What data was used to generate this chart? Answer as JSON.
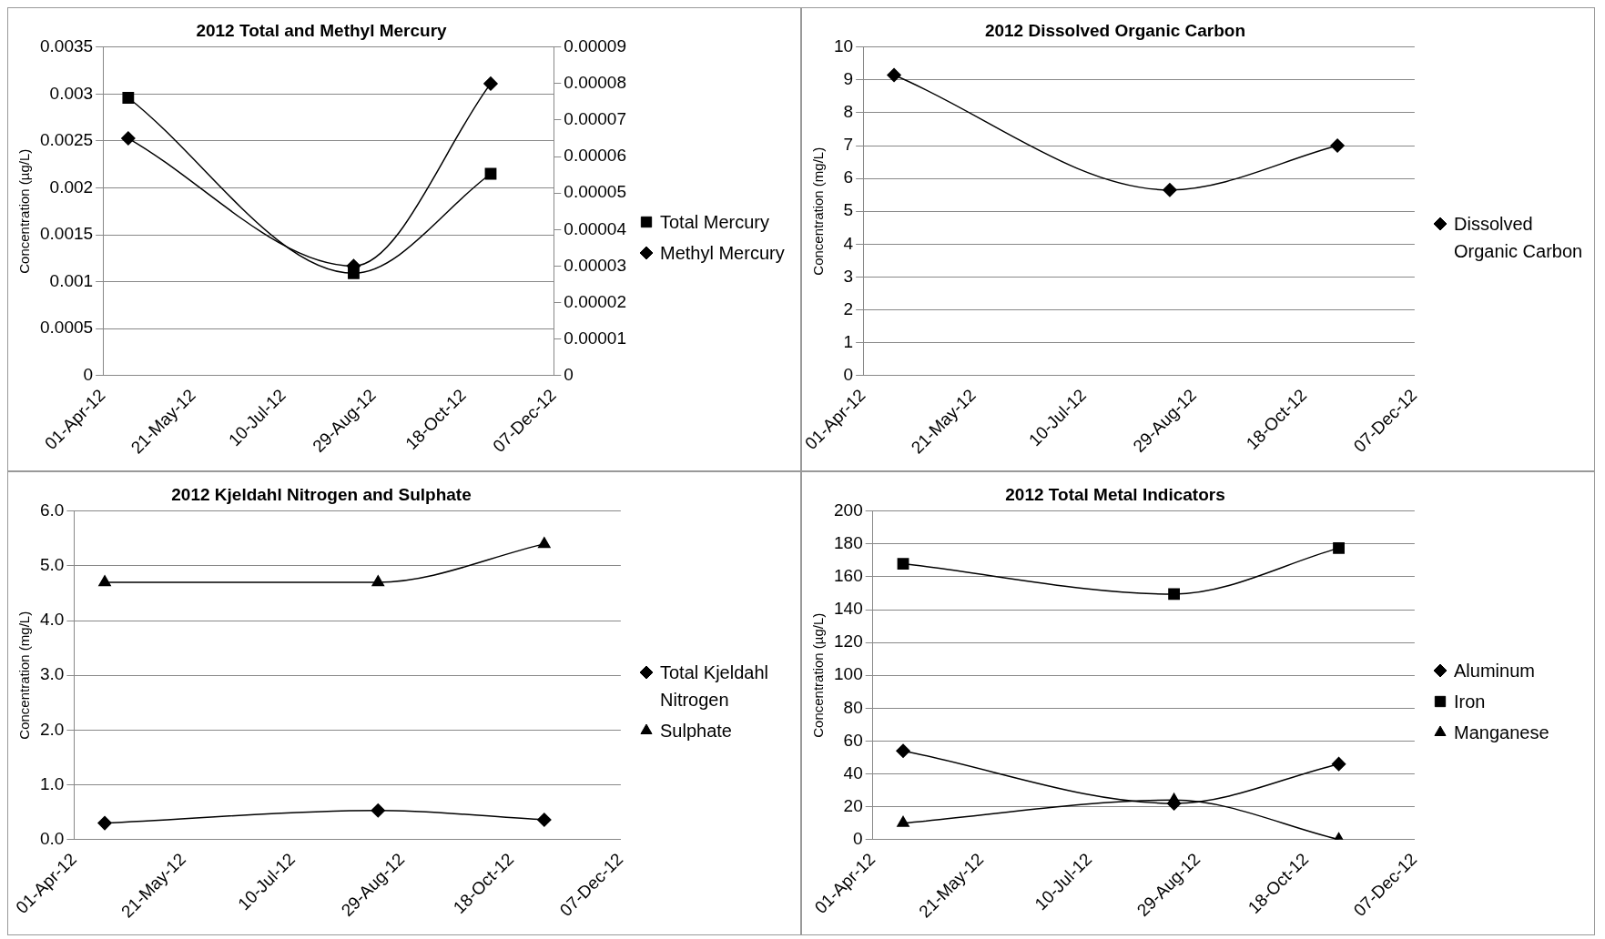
{
  "chart_data": [
    {
      "type": "line",
      "title": "2012 Total and Methyl Mercury",
      "ylabel": "Concentration (µg/L)",
      "x": [
        "2012-04-15",
        "2012-08-18",
        "2012-11-02"
      ],
      "series": [
        {
          "name": "Total Mercury",
          "color": "#000000",
          "marker": "square",
          "values": [
            0.00296,
            0.00109,
            0.00215
          ]
        },
        {
          "name": "Methyl Mercury",
          "color": "#000000",
          "marker": "diamond",
          "axis": "y2",
          "values": [
            6.5e-05,
            3e-05,
            8e-05
          ]
        }
      ],
      "xlim": [
        "2012-04-01",
        "2012-12-07"
      ],
      "xticks": [
        {
          "value": "2012-04-01",
          "label": "01-Apr-12"
        },
        {
          "value": "2012-05-21",
          "label": "21-May-12"
        },
        {
          "value": "2012-07-10",
          "label": "10-Jul-12"
        },
        {
          "value": "2012-08-29",
          "label": "29-Aug-12"
        },
        {
          "value": "2012-10-18",
          "label": "18-Oct-12"
        },
        {
          "value": "2012-12-07",
          "label": "07-Dec-12"
        }
      ],
      "ylim": [
        0,
        0.0035
      ],
      "yticks": [
        0,
        0.0005,
        0.001,
        0.0015,
        0.002,
        0.0025,
        0.003,
        0.0035
      ],
      "y2lim": [
        0,
        9e-05
      ],
      "y2ticks": [
        0,
        {
          "value": 1e-05,
          "label": "0.00001"
        },
        {
          "value": 2e-05,
          "label": "0.00002"
        },
        {
          "value": 3e-05,
          "label": "0.00003"
        },
        {
          "value": 4e-05,
          "label": "0.00004"
        },
        {
          "value": 5e-05,
          "label": "0.00005"
        },
        {
          "value": 6e-05,
          "label": "0.00006"
        },
        {
          "value": 7e-05,
          "label": "0.00007"
        },
        {
          "value": 8e-05,
          "label": "0.00008"
        },
        {
          "value": 9e-05,
          "label": "0.00009"
        }
      ],
      "grid": "y",
      "legend": "right",
      "line_style": "solid"
    },
    {
      "type": "line",
      "title": "2012 Dissolved Organic Carbon",
      "ylabel": "Concentration (mg/L)",
      "x": [
        "2012-04-15",
        "2012-08-18",
        "2012-11-02"
      ],
      "series": [
        {
          "name": "Dissolved Organic Carbon",
          "color": "#000000",
          "marker": "diamond",
          "values": [
            9.15,
            5.65,
            7.0
          ]
        }
      ],
      "xlim": [
        "2012-04-01",
        "2012-12-07"
      ],
      "xticks": [
        {
          "value": "2012-04-01",
          "label": "01-Apr-12"
        },
        {
          "value": "2012-05-21",
          "label": "21-May-12"
        },
        {
          "value": "2012-07-10",
          "label": "10-Jul-12"
        },
        {
          "value": "2012-08-29",
          "label": "29-Aug-12"
        },
        {
          "value": "2012-10-18",
          "label": "18-Oct-12"
        },
        {
          "value": "2012-12-07",
          "label": "07-Dec-12"
        }
      ],
      "ylim": [
        0,
        10
      ],
      "yticks": [
        0,
        1,
        2,
        3,
        4,
        5,
        6,
        7,
        8,
        9,
        10
      ],
      "grid": "y",
      "legend": "right",
      "line_style": "solid"
    },
    {
      "type": "line",
      "title": "2012 Kjeldahl Nitrogen and Sulphate",
      "ylabel": "Concentration (mg/L)",
      "x": [
        "2012-04-15",
        "2012-08-18",
        "2012-11-02"
      ],
      "series": [
        {
          "name": "Total Kjeldahl Nitrogen",
          "color": "#000000",
          "marker": "diamond",
          "values": [
            0.3,
            0.53,
            0.36
          ]
        },
        {
          "name": "Sulphate",
          "color": "#000000",
          "marker": "triangle",
          "values": [
            4.7,
            4.7,
            5.4
          ]
        }
      ],
      "xlim": [
        "2012-04-01",
        "2012-12-07"
      ],
      "xticks": [
        {
          "value": "2012-04-01",
          "label": "01-Apr-12"
        },
        {
          "value": "2012-05-21",
          "label": "21-May-12"
        },
        {
          "value": "2012-07-10",
          "label": "10-Jul-12"
        },
        {
          "value": "2012-08-29",
          "label": "29-Aug-12"
        },
        {
          "value": "2012-10-18",
          "label": "18-Oct-12"
        },
        {
          "value": "2012-12-07",
          "label": "07-Dec-12"
        }
      ],
      "ylim": [
        0,
        6
      ],
      "yticks": [
        {
          "value": 0,
          "label": "0.0"
        },
        {
          "value": 1,
          "label": "1.0"
        },
        {
          "value": 2,
          "label": "2.0"
        },
        {
          "value": 3,
          "label": "3.0"
        },
        {
          "value": 4,
          "label": "4.0"
        },
        {
          "value": 5,
          "label": "5.0"
        },
        {
          "value": 6,
          "label": "6.0"
        }
      ],
      "grid": "y",
      "legend": "right",
      "line_style": "solid"
    },
    {
      "type": "line",
      "title": "2012 Total Metal Indicators",
      "ylabel": "Concentration (µg/L)",
      "x": [
        "2012-04-15",
        "2012-08-18",
        "2012-11-02"
      ],
      "series": [
        {
          "name": "Aluminum",
          "color": "#000000",
          "marker": "diamond",
          "values": [
            54,
            22,
            46
          ]
        },
        {
          "name": "Iron",
          "color": "#000000",
          "marker": "square",
          "values": [
            168,
            149.5,
            177.5
          ]
        },
        {
          "name": "Manganese",
          "color": "#000000",
          "marker": "triangle",
          "values": [
            10,
            24,
            0
          ]
        }
      ],
      "xlim": [
        "2012-04-01",
        "2012-12-07"
      ],
      "xticks": [
        {
          "value": "2012-04-01",
          "label": "01-Apr-12"
        },
        {
          "value": "2012-05-21",
          "label": "21-May-12"
        },
        {
          "value": "2012-07-10",
          "label": "10-Jul-12"
        },
        {
          "value": "2012-08-29",
          "label": "29-Aug-12"
        },
        {
          "value": "2012-10-18",
          "label": "18-Oct-12"
        },
        {
          "value": "2012-12-07",
          "label": "07-Dec-12"
        }
      ],
      "ylim": [
        0,
        200
      ],
      "yticks": [
        0,
        20,
        40,
        60,
        80,
        100,
        120,
        140,
        160,
        180,
        200
      ],
      "grid": "y",
      "legend": "right",
      "line_style": "solid"
    }
  ]
}
